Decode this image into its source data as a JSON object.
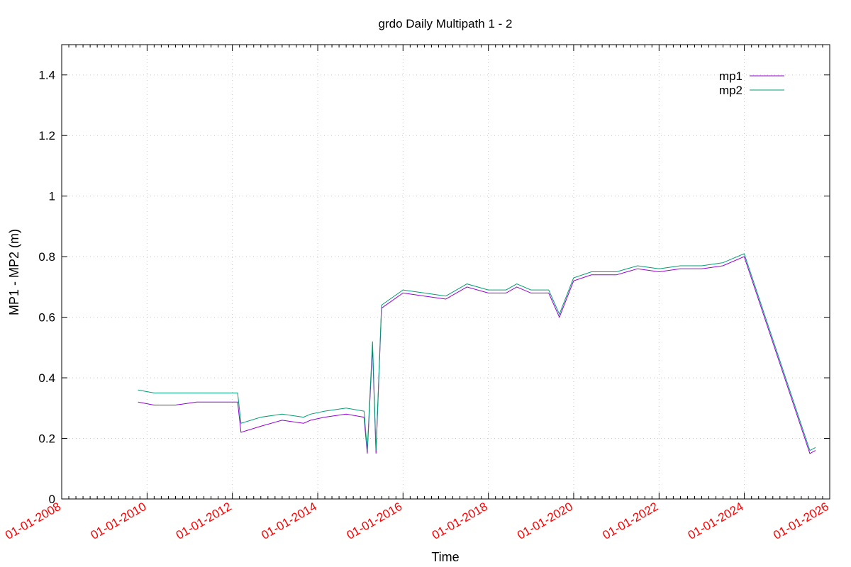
{
  "chart_data": {
    "type": "line",
    "title": "grdo Daily Multipath 1 - 2",
    "xlabel": "Time",
    "ylabel": "MP1 - MP2 (m)",
    "xlim": [
      "2008-01-01",
      "2026-01-01"
    ],
    "ylim": [
      0,
      1.5
    ],
    "grid": true,
    "legend_position": "top-right",
    "x_ticks": [
      "01-01-2008",
      "01-01-2010",
      "01-01-2012",
      "01-01-2014",
      "01-01-2016",
      "01-01-2018",
      "01-01-2020",
      "01-01-2022",
      "01-01-2024",
      "01-01-2026"
    ],
    "y_ticks": [
      "0",
      "0.2",
      "0.4",
      "0.6",
      "0.8",
      "1",
      "1.2",
      "1.4"
    ],
    "series": [
      {
        "name": "mp1",
        "color": "#9400d3",
        "points": [
          [
            "2009-10-15",
            0.32
          ],
          [
            "2010-03-01",
            0.31
          ],
          [
            "2010-09-01",
            0.31
          ],
          [
            "2011-03-01",
            0.32
          ],
          [
            "2011-09-01",
            0.32
          ],
          [
            "2012-02-15",
            0.32
          ],
          [
            "2012-03-15",
            0.22
          ],
          [
            "2012-09-01",
            0.24
          ],
          [
            "2013-03-01",
            0.26
          ],
          [
            "2013-09-01",
            0.25
          ],
          [
            "2013-11-01",
            0.26
          ],
          [
            "2014-03-01",
            0.27
          ],
          [
            "2014-09-01",
            0.28
          ],
          [
            "2015-02-01",
            0.27
          ],
          [
            "2015-03-01",
            0.15
          ],
          [
            "2015-04-15",
            0.5
          ],
          [
            "2015-05-15",
            0.15
          ],
          [
            "2015-07-01",
            0.63
          ],
          [
            "2016-01-01",
            0.68
          ],
          [
            "2016-07-01",
            0.67
          ],
          [
            "2017-01-01",
            0.66
          ],
          [
            "2017-07-01",
            0.7
          ],
          [
            "2017-12-31",
            0.68
          ],
          [
            "2018-06-01",
            0.68
          ],
          [
            "2018-09-01",
            0.7
          ],
          [
            "2018-12-31",
            0.68
          ],
          [
            "2019-06-01",
            0.68
          ],
          [
            "2019-09-01",
            0.6
          ],
          [
            "2019-12-31",
            0.72
          ],
          [
            "2020-06-01",
            0.74
          ],
          [
            "2021-01-01",
            0.74
          ],
          [
            "2021-07-01",
            0.76
          ],
          [
            "2022-01-01",
            0.75
          ],
          [
            "2022-07-01",
            0.76
          ],
          [
            "2023-01-01",
            0.76
          ],
          [
            "2023-07-01",
            0.77
          ],
          [
            "2023-12-31",
            0.8
          ],
          [
            "2025-07-15",
            0.15
          ],
          [
            "2025-09-01",
            0.16
          ]
        ]
      },
      {
        "name": "mp2",
        "color": "#009e73",
        "points": [
          [
            "2009-10-15",
            0.36
          ],
          [
            "2010-03-01",
            0.35
          ],
          [
            "2010-09-01",
            0.35
          ],
          [
            "2011-03-01",
            0.35
          ],
          [
            "2011-09-01",
            0.35
          ],
          [
            "2012-02-15",
            0.35
          ],
          [
            "2012-03-15",
            0.25
          ],
          [
            "2012-09-01",
            0.27
          ],
          [
            "2013-03-01",
            0.28
          ],
          [
            "2013-09-01",
            0.27
          ],
          [
            "2013-11-01",
            0.28
          ],
          [
            "2014-03-01",
            0.29
          ],
          [
            "2014-09-01",
            0.3
          ],
          [
            "2015-02-01",
            0.29
          ],
          [
            "2015-03-01",
            0.16
          ],
          [
            "2015-04-15",
            0.52
          ],
          [
            "2015-05-15",
            0.16
          ],
          [
            "2015-07-01",
            0.64
          ],
          [
            "2016-01-01",
            0.69
          ],
          [
            "2016-07-01",
            0.68
          ],
          [
            "2017-01-01",
            0.67
          ],
          [
            "2017-07-01",
            0.71
          ],
          [
            "2017-12-31",
            0.69
          ],
          [
            "2018-06-01",
            0.69
          ],
          [
            "2018-09-01",
            0.71
          ],
          [
            "2018-12-31",
            0.69
          ],
          [
            "2019-06-01",
            0.69
          ],
          [
            "2019-09-01",
            0.61
          ],
          [
            "2019-12-31",
            0.73
          ],
          [
            "2020-06-01",
            0.75
          ],
          [
            "2021-01-01",
            0.75
          ],
          [
            "2021-07-01",
            0.77
          ],
          [
            "2022-01-01",
            0.76
          ],
          [
            "2022-07-01",
            0.77
          ],
          [
            "2023-01-01",
            0.77
          ],
          [
            "2023-07-01",
            0.78
          ],
          [
            "2023-12-31",
            0.81
          ],
          [
            "2025-07-15",
            0.16
          ],
          [
            "2025-09-01",
            0.17
          ]
        ]
      }
    ]
  }
}
